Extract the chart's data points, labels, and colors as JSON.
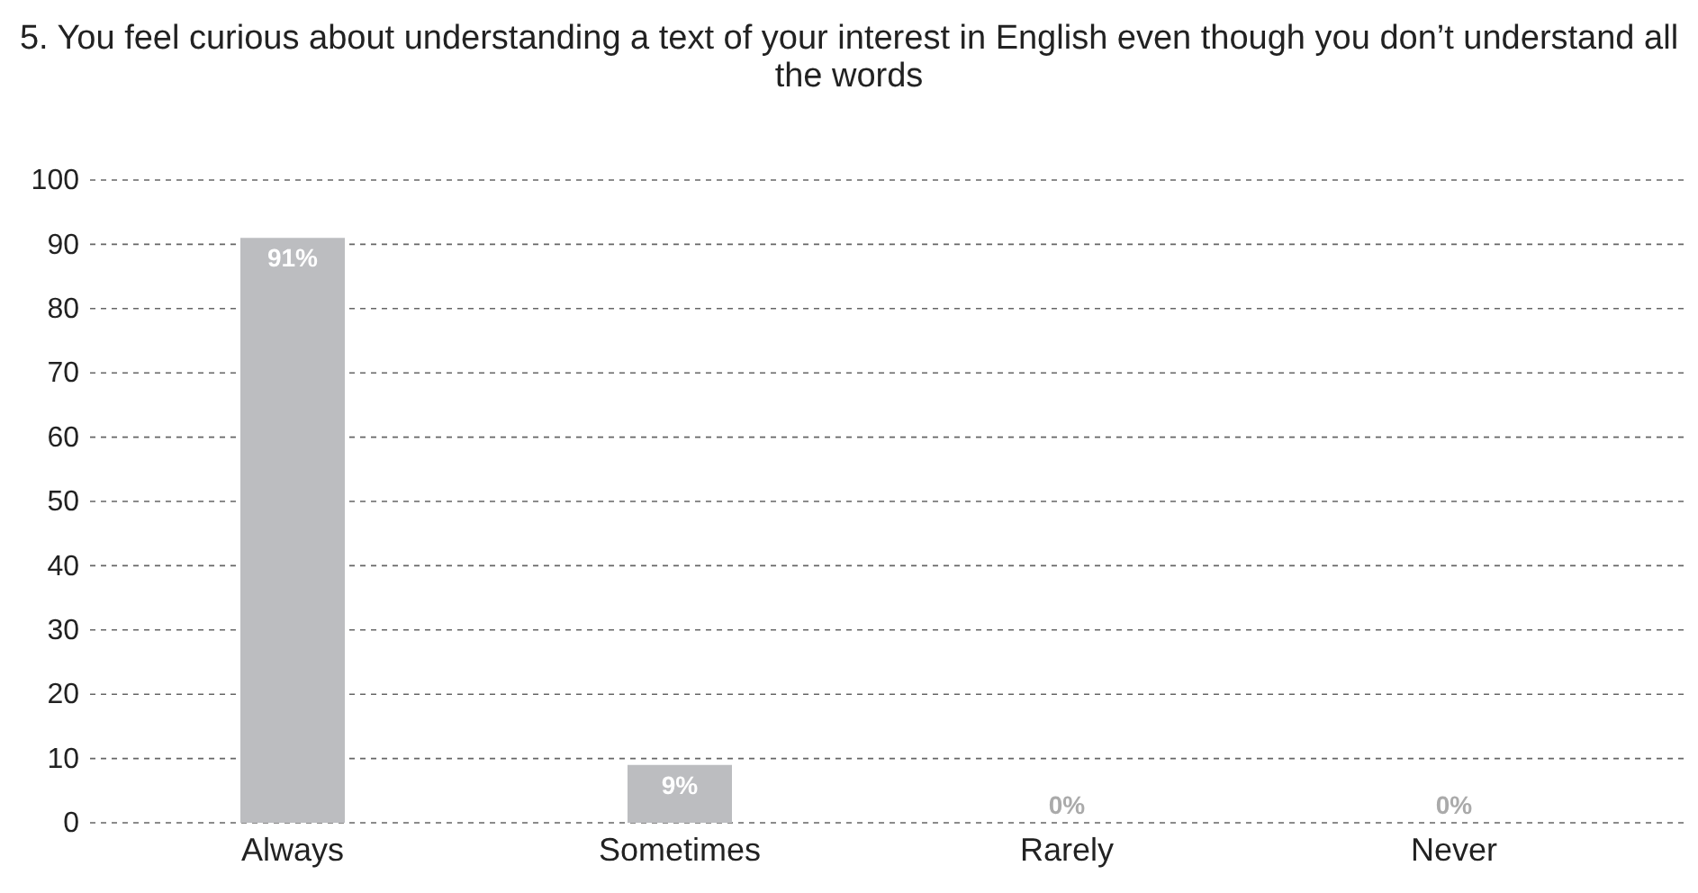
{
  "chart_data": {
    "type": "bar",
    "title": "5. You feel curious about understanding a text of your interest in English even though you don’t understand all the words",
    "categories": [
      "Always",
      "Sometimes",
      "Rarely",
      "Never"
    ],
    "values": [
      91,
      9,
      0,
      0
    ],
    "value_labels": [
      "91%",
      "9%",
      "0%",
      "0%"
    ],
    "color": "#bcbdc0",
    "ylim": [
      0,
      100
    ],
    "yticks": [
      0,
      10,
      20,
      30,
      40,
      50,
      60,
      70,
      80,
      90,
      100
    ],
    "grid": "y",
    "line_style": "dashed"
  }
}
